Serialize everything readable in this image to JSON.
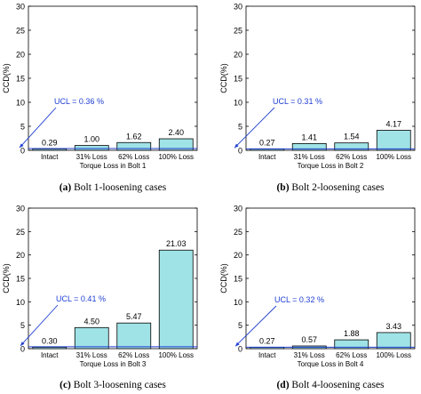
{
  "chart_data": [
    {
      "type": "bar",
      "caption_letter": "(a)",
      "caption_text": " Bolt 1-loosening cases",
      "ylabel": "CCD(%)",
      "xlabel": "Torque Loss in Bolt 1",
      "ylim": [
        0,
        30
      ],
      "yticks": [
        0,
        5,
        10,
        15,
        20,
        25,
        30
      ],
      "categories": [
        "Intact",
        "31%  Loss",
        "62%  Loss",
        "100%  Loss"
      ],
      "values": [
        0.29,
        1.0,
        1.62,
        2.4
      ],
      "value_labels": [
        "0.29",
        "1.00",
        "1.62",
        "2.40"
      ],
      "ucl_value": 0.36,
      "ucl_label": "UCL = 0.36 %",
      "bar_color": "#a0e3e6",
      "ucl_color": "#1f3fd1"
    },
    {
      "type": "bar",
      "caption_letter": "(b)",
      "caption_text": " Bolt 2-loosening cases",
      "ylabel": "CCD(%)",
      "xlabel": "Torque Loss in Bolt 2",
      "ylim": [
        0,
        30
      ],
      "yticks": [
        0,
        5,
        10,
        15,
        20,
        25,
        30
      ],
      "categories": [
        "Intact",
        "31%  Loss",
        "62%  Loss",
        "100%  Loss"
      ],
      "values": [
        0.27,
        1.41,
        1.54,
        4.17
      ],
      "value_labels": [
        "0.27",
        "1.41",
        "1.54",
        "4.17"
      ],
      "ucl_value": 0.31,
      "ucl_label": "UCL = 0.31 %",
      "bar_color": "#a0e3e6",
      "ucl_color": "#1f3fd1"
    },
    {
      "type": "bar",
      "caption_letter": "(c)",
      "caption_text": " Bolt 3-loosening cases",
      "ylabel": "CCD(%)",
      "xlabel": "Torque Loss in Bolt 3",
      "ylim": [
        0,
        30
      ],
      "yticks": [
        0,
        5,
        10,
        15,
        20,
        25,
        30
      ],
      "categories": [
        "Intact",
        "31%  Loss",
        "62%  Loss",
        "100%  Loss"
      ],
      "values": [
        0.3,
        4.5,
        5.47,
        21.03
      ],
      "value_labels": [
        "0.30",
        "4.50",
        "5.47",
        "21.03"
      ],
      "ucl_value": 0.41,
      "ucl_label": "UCL = 0.41 %",
      "bar_color": "#a0e3e6",
      "ucl_color": "#1f3fd1"
    },
    {
      "type": "bar",
      "caption_letter": "(d)",
      "caption_text": " Bolt 4-loosening cases",
      "ylabel": "CCD(%)",
      "xlabel": "Torque Loss in Bolt 4",
      "ylim": [
        0,
        30
      ],
      "yticks": [
        0,
        5,
        10,
        15,
        20,
        25,
        30
      ],
      "categories": [
        "Intact",
        "31%  Loss",
        "62%  Loss",
        "100%  Loss"
      ],
      "values": [
        0.27,
        0.57,
        1.88,
        3.43
      ],
      "value_labels": [
        "0.27",
        "0.57",
        "1.88",
        "3.43"
      ],
      "ucl_value": 0.32,
      "ucl_label": "UCL = 0.32 %",
      "bar_color": "#a0e3e6",
      "ucl_color": "#1f3fd1"
    }
  ]
}
